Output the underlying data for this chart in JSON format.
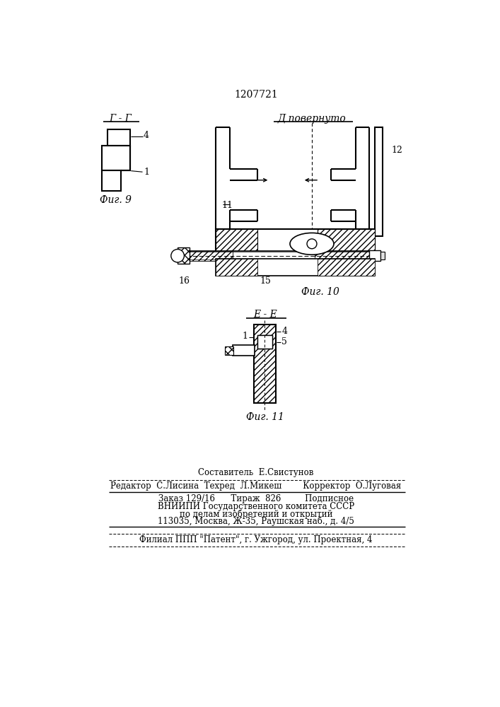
{
  "title": "1207721",
  "bg_color": "#ffffff",
  "fig9_section": "Г - Г",
  "fig9_label": "Фиг. 9",
  "fig10_section": "Д повернуто",
  "fig10_label": "Фиг. 10",
  "fig11_section": "Е - Е",
  "fig11_label": "Фиг. 11",
  "footer_line1": "Составитель  Е.Свистунов",
  "footer_line2": "Редактор  С.Лисина  Техред  Л.Микеш        Корректор  О.Луговая",
  "footer_line3": "Заказ 129/16      Тираж  826         Подписное",
  "footer_line4": "ВНИИПИ Государственного комитета СССР",
  "footer_line5": "по делам изобретений и открытий",
  "footer_line6": "113035, Москва, Ж-35, Раушская наб., д. 4/5",
  "footer_line7": "Филиал ППП \"Патент\", г. Ужгород, ул. Проектная, 4"
}
